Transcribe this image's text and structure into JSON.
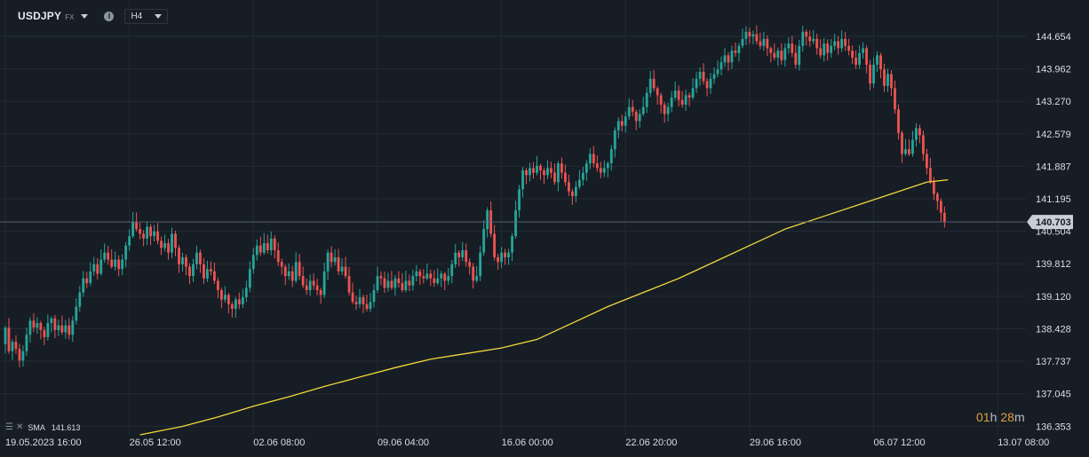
{
  "header": {
    "symbol": "USDJPY",
    "market": "FX",
    "timeframe": "H4"
  },
  "colors": {
    "background": "#161d25",
    "up": "#26a69a",
    "down": "#ef5350",
    "sma": "#f4d73b",
    "grid": "#222b35"
  },
  "legend": {
    "indicator": "SMA",
    "value": "141.613"
  },
  "countdown": {
    "hours": "01",
    "hours_unit": "h",
    "minutes": "28",
    "minutes_unit": "m"
  },
  "chart_data": {
    "type": "candlestick",
    "ylim": [
      136.17,
      145.05
    ],
    "y_ticks": [
      "144.654",
      "143.962",
      "143.270",
      "142.579",
      "141.887",
      "141.195",
      "140.504",
      "139.812",
      "139.120",
      "138.428",
      "137.737",
      "137.045",
      "136.353"
    ],
    "x_ticks": [
      "19.05.2023  16:00",
      "26.05  12:00",
      "02.06  08:00",
      "09.06  04:00",
      "16.06  00:00",
      "22.06  20:00",
      "29.06  16:00",
      "06.07  12:00",
      "13.07  08:00"
    ],
    "x_tick_index": [
      0,
      35,
      70,
      105,
      140,
      175,
      210,
      245,
      280
    ],
    "current_price": "140.703",
    "closes": [
      138.45,
      137.95,
      138.15,
      138.0,
      137.75,
      137.95,
      138.3,
      138.6,
      138.45,
      138.55,
      138.4,
      138.25,
      138.55,
      138.65,
      138.4,
      138.5,
      138.35,
      138.5,
      138.3,
      138.6,
      138.9,
      139.2,
      139.5,
      139.4,
      139.65,
      139.8,
      139.6,
      139.9,
      140.05,
      139.9,
      139.75,
      139.9,
      139.7,
      139.9,
      140.2,
      140.4,
      140.7,
      140.55,
      140.45,
      140.35,
      140.6,
      140.4,
      140.5,
      140.3,
      140.15,
      140.25,
      140.05,
      140.45,
      140.15,
      139.8,
      139.95,
      139.75,
      139.55,
      139.8,
      140.05,
      139.8,
      139.5,
      139.7,
      139.65,
      139.45,
      139.25,
      139.05,
      139.15,
      138.95,
      138.85,
      139.05,
      138.95,
      139.1,
      139.3,
      139.7,
      140.0,
      140.2,
      140.05,
      140.25,
      140.1,
      140.35,
      140.1,
      139.85,
      139.75,
      139.55,
      139.65,
      139.45,
      139.85,
      139.55,
      139.35,
      139.25,
      139.45,
      139.35,
      139.25,
      139.15,
      139.65,
      140.05,
      139.85,
      139.95,
      139.65,
      139.75,
      139.55,
      139.2,
      139.0,
      138.95,
      139.1,
      138.95,
      138.85,
      139.0,
      139.25,
      139.55,
      139.5,
      139.3,
      139.45,
      139.3,
      139.5,
      139.4,
      139.25,
      139.45,
      139.35,
      139.55,
      139.65,
      139.55,
      139.5,
      139.6,
      139.5,
      139.4,
      139.5,
      139.6,
      139.45,
      139.55,
      139.8,
      140.05,
      139.95,
      140.1,
      139.85,
      139.75,
      139.45,
      139.55,
      140.05,
      140.55,
      140.95,
      140.45,
      139.95,
      139.85,
      140.05,
      139.95,
      140.05,
      140.4,
      140.95,
      141.4,
      141.8,
      141.7,
      141.85,
      141.75,
      141.9,
      141.8,
      141.7,
      141.85,
      141.75,
      141.55,
      141.95,
      141.75,
      141.55,
      141.35,
      141.25,
      141.45,
      141.6,
      141.75,
      141.95,
      142.15,
      141.95,
      141.85,
      141.75,
      141.85,
      141.95,
      142.25,
      142.65,
      142.85,
      142.75,
      142.95,
      143.15,
      143.05,
      142.85,
      143.0,
      143.15,
      143.45,
      143.75,
      143.55,
      143.4,
      143.2,
      143.0,
      143.15,
      143.35,
      143.5,
      143.3,
      143.2,
      143.4,
      143.35,
      143.55,
      143.75,
      143.9,
      143.7,
      143.55,
      143.75,
      143.85,
      143.95,
      144.1,
      144.25,
      144.1,
      144.35,
      144.3,
      144.45,
      144.6,
      144.75,
      144.65,
      144.7,
      144.55,
      144.45,
      144.6,
      144.4,
      144.3,
      144.2,
      144.35,
      144.15,
      144.4,
      144.5,
      144.3,
      144.05,
      144.45,
      144.75,
      144.65,
      144.55,
      144.6,
      144.4,
      144.25,
      144.5,
      144.3,
      144.45,
      144.55,
      144.4,
      144.6,
      144.45,
      144.35,
      144.2,
      144.05,
      144.3,
      144.4,
      144.05,
      143.65,
      144.05,
      144.25,
      143.95,
      143.6,
      143.85,
      143.55,
      143.1,
      142.6,
      142.15,
      142.25,
      142.15,
      142.45,
      142.7,
      142.55,
      142.15,
      141.85,
      141.55,
      141.3,
      141.15,
      140.9,
      140.7
    ],
    "sma": {
      "name": "SMA",
      "x_index": [
        38,
        50,
        60,
        70,
        80,
        90,
        100,
        110,
        120,
        130,
        140,
        150,
        160,
        170,
        180,
        190,
        200,
        210,
        220,
        230,
        240,
        250,
        260,
        266
      ],
      "y": [
        136.17,
        136.35,
        136.55,
        136.78,
        136.98,
        137.2,
        137.4,
        137.6,
        137.78,
        137.9,
        138.02,
        138.2,
        138.55,
        138.9,
        139.2,
        139.5,
        139.85,
        140.2,
        140.55,
        140.8,
        141.05,
        141.3,
        141.55,
        141.6
      ]
    }
  }
}
